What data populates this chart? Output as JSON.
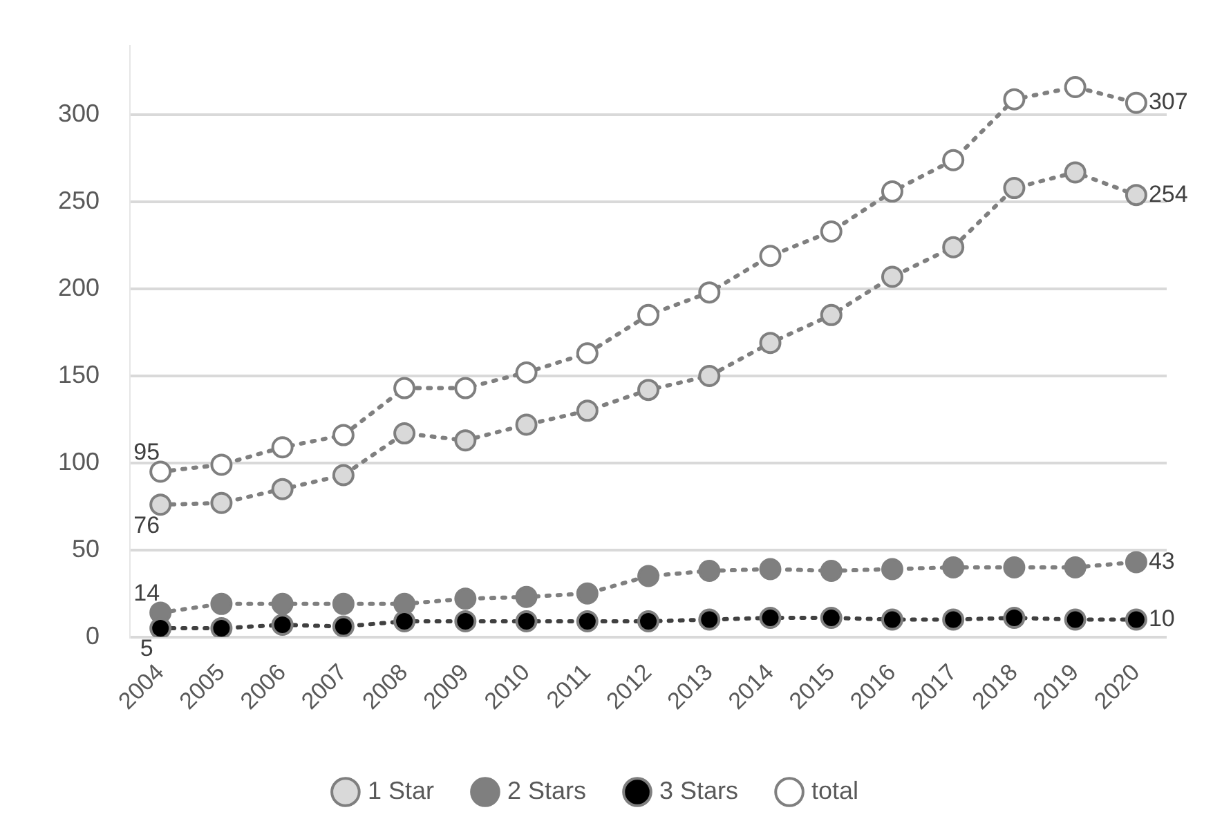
{
  "chart_data": {
    "type": "line",
    "categories": [
      "2004",
      "2005",
      "2006",
      "2007",
      "2008",
      "2009",
      "2010",
      "2011",
      "2012",
      "2013",
      "2014",
      "2015",
      "2016",
      "2017",
      "2018",
      "2019",
      "2020"
    ],
    "series": [
      {
        "name": "1 Star",
        "color": "#d9d9d9",
        "values": [
          76,
          77,
          85,
          93,
          117,
          113,
          122,
          130,
          142,
          150,
          169,
          185,
          207,
          224,
          258,
          267,
          254
        ],
        "value_labels": [
          "76",
          null,
          null,
          null,
          null,
          null,
          null,
          null,
          null,
          null,
          null,
          null,
          null,
          null,
          null,
          null,
          "254"
        ]
      },
      {
        "name": "2 Stars",
        "color": "#7f7f7f",
        "values": [
          14,
          19,
          19,
          19,
          19,
          22,
          23,
          25,
          35,
          38,
          39,
          38,
          39,
          40,
          40,
          40,
          43
        ],
        "value_labels": [
          "14",
          null,
          null,
          null,
          null,
          null,
          null,
          null,
          null,
          null,
          null,
          null,
          null,
          null,
          null,
          null,
          "43"
        ]
      },
      {
        "name": "3 Stars",
        "color": "#000000",
        "values": [
          5,
          5,
          7,
          6,
          9,
          9,
          9,
          9,
          9,
          10,
          11,
          11,
          10,
          10,
          11,
          10,
          10
        ],
        "value_labels": [
          "5",
          null,
          null,
          null,
          null,
          null,
          null,
          null,
          null,
          null,
          null,
          null,
          null,
          null,
          null,
          null,
          "10"
        ]
      },
      {
        "name": "total",
        "color": "#ffffff",
        "values": [
          95,
          99,
          109,
          116,
          143,
          143,
          152,
          163,
          185,
          198,
          219,
          233,
          256,
          274,
          309,
          316,
          307
        ],
        "value_labels": [
          "95",
          null,
          null,
          null,
          null,
          null,
          null,
          null,
          null,
          null,
          null,
          null,
          null,
          null,
          null,
          null,
          "307"
        ]
      }
    ],
    "ylim": [
      0,
      340
    ],
    "yticks": [
      0,
      50,
      100,
      150,
      200,
      250,
      300
    ],
    "grid": "y",
    "legend": "bottom",
    "marker": "circle",
    "line_style": "dotted"
  }
}
